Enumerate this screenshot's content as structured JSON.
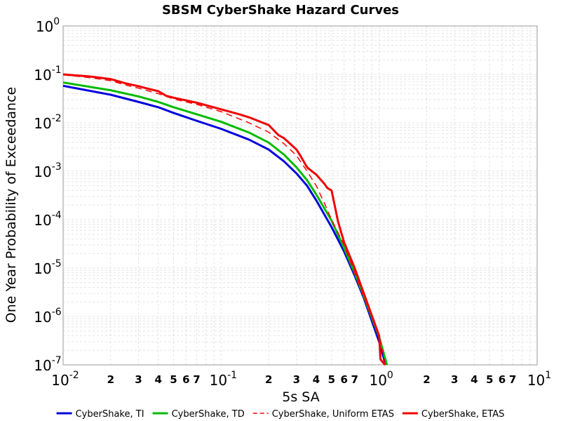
{
  "chart_data": {
    "type": "line",
    "title": "SBSM CyberShake Hazard Curves",
    "xlabel": "5s SA",
    "ylabel": "One Year Probability of Exceedance",
    "xscale": "log",
    "yscale": "log",
    "xlim": [
      0.01,
      10
    ],
    "ylim": [
      1e-07,
      1
    ],
    "grid": true,
    "legend_position": "bottom",
    "x_ticks": [
      {
        "base": "10",
        "exp": "-2"
      },
      {
        "base": "10",
        "exp": "-1"
      },
      {
        "base": "10",
        "exp": "0"
      },
      {
        "base": "10",
        "exp": "1"
      }
    ],
    "x_minor_labels": [
      "2",
      "3",
      "4",
      "5",
      "6",
      "7"
    ],
    "y_ticks": [
      {
        "base": "10",
        "exp": "0"
      },
      {
        "base": "10",
        "exp": "-1"
      },
      {
        "base": "10",
        "exp": "-2"
      },
      {
        "base": "10",
        "exp": "-3"
      },
      {
        "base": "10",
        "exp": "-4"
      },
      {
        "base": "10",
        "exp": "-5"
      },
      {
        "base": "10",
        "exp": "-6"
      },
      {
        "base": "10",
        "exp": "-7"
      }
    ],
    "series": [
      {
        "name": "CyberShake, TI",
        "color": "#0000dd",
        "dash": "solid",
        "points": [
          [
            0.01,
            0.058
          ],
          [
            0.02,
            0.038
          ],
          [
            0.03,
            0.027
          ],
          [
            0.04,
            0.021
          ],
          [
            0.05,
            0.016
          ],
          [
            0.07,
            0.011
          ],
          [
            0.1,
            0.0075
          ],
          [
            0.15,
            0.0045
          ],
          [
            0.2,
            0.0028
          ],
          [
            0.25,
            0.0016
          ],
          [
            0.3,
            0.0009
          ],
          [
            0.35,
            0.0005
          ],
          [
            0.4,
            0.00025
          ],
          [
            0.5,
            7e-05
          ],
          [
            0.6,
            2.2e-05
          ],
          [
            0.7,
            7e-06
          ],
          [
            0.8,
            2.4e-06
          ],
          [
            1.0,
            3e-07
          ],
          [
            1.1,
            1e-07
          ]
        ]
      },
      {
        "name": "CyberShake, TD",
        "color": "#00bb00",
        "dash": "solid",
        "points": [
          [
            0.01,
            0.068
          ],
          [
            0.02,
            0.047
          ],
          [
            0.03,
            0.035
          ],
          [
            0.04,
            0.027
          ],
          [
            0.05,
            0.021
          ],
          [
            0.07,
            0.015
          ],
          [
            0.1,
            0.0105
          ],
          [
            0.15,
            0.0063
          ],
          [
            0.2,
            0.0039
          ],
          [
            0.25,
            0.0022
          ],
          [
            0.3,
            0.0012
          ],
          [
            0.35,
            0.00065
          ],
          [
            0.4,
            0.00033
          ],
          [
            0.5,
            9.5e-05
          ],
          [
            0.6,
            2.6e-05
          ],
          [
            0.7,
            8e-06
          ],
          [
            0.8,
            2.6e-06
          ],
          [
            1.0,
            3.8e-07
          ],
          [
            1.12,
            1e-07
          ]
        ]
      },
      {
        "name": "CyberShake, Uniform ETAS",
        "color": "#ff0000",
        "dash": "dashed",
        "points": [
          [
            0.01,
            0.098
          ],
          [
            0.015,
            0.085
          ],
          [
            0.02,
            0.074
          ],
          [
            0.025,
            0.06
          ],
          [
            0.03,
            0.052
          ],
          [
            0.04,
            0.04
          ],
          [
            0.05,
            0.031
          ],
          [
            0.07,
            0.024
          ],
          [
            0.1,
            0.017
          ],
          [
            0.15,
            0.01
          ],
          [
            0.2,
            0.0064
          ],
          [
            0.25,
            0.0037
          ],
          [
            0.3,
            0.0021
          ],
          [
            0.35,
            0.001
          ],
          [
            0.4,
            0.0005
          ],
          [
            0.45,
            0.00022
          ],
          [
            0.5,
            0.0001
          ],
          [
            0.6,
            3e-05
          ],
          [
            0.7,
            8e-06
          ],
          [
            0.8,
            2.5e-06
          ],
          [
            1.0,
            4e-07
          ],
          [
            1.1,
            1e-07
          ]
        ]
      },
      {
        "name": "CyberShake, ETAS",
        "color": "#ee0000",
        "dash": "solid",
        "points": [
          [
            0.01,
            0.1
          ],
          [
            0.015,
            0.09
          ],
          [
            0.02,
            0.08
          ],
          [
            0.025,
            0.065
          ],
          [
            0.03,
            0.057
          ],
          [
            0.035,
            0.05
          ],
          [
            0.04,
            0.045
          ],
          [
            0.045,
            0.036
          ],
          [
            0.05,
            0.033
          ],
          [
            0.07,
            0.026
          ],
          [
            0.1,
            0.019
          ],
          [
            0.13,
            0.015
          ],
          [
            0.15,
            0.013
          ],
          [
            0.2,
            0.009
          ],
          [
            0.23,
            0.0056
          ],
          [
            0.25,
            0.0048
          ],
          [
            0.3,
            0.0028
          ],
          [
            0.32,
            0.002
          ],
          [
            0.35,
            0.0012
          ],
          [
            0.4,
            0.00085
          ],
          [
            0.45,
            0.00055
          ],
          [
            0.47,
            0.00045
          ],
          [
            0.5,
            0.0004
          ],
          [
            0.55,
            9e-05
          ],
          [
            0.6,
            3.4e-05
          ],
          [
            0.7,
            1e-05
          ],
          [
            0.8,
            3e-06
          ],
          [
            1.0,
            4e-07
          ],
          [
            1.02,
            1.3e-07
          ],
          [
            1.09,
            1e-07
          ]
        ]
      }
    ]
  }
}
